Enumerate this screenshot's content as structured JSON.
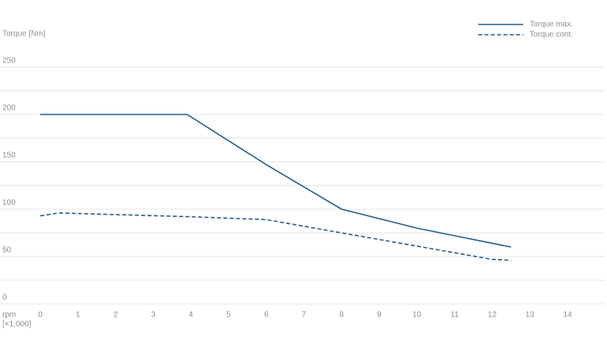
{
  "chart_data": {
    "type": "line",
    "ylabel": "Torque [Nm]",
    "xlabel": "rpm",
    "xunit": "[×1,000]",
    "xlim": [
      0,
      14
    ],
    "xticks": [
      0,
      1,
      2,
      3,
      4,
      5,
      6,
      7,
      8,
      9,
      10,
      11,
      12,
      13,
      14
    ],
    "ylim": [
      0,
      250
    ],
    "yticks": [
      0,
      50,
      100,
      150,
      200,
      250
    ],
    "minor_yticks": [
      25,
      75,
      125,
      175,
      225
    ],
    "grid": true,
    "legend": "upper right",
    "series": [
      {
        "name": "Torque max.",
        "color": "#245d8c",
        "style": "solid",
        "x": [
          0,
          3.9,
          6,
          8,
          10,
          11,
          12.5
        ],
        "values": [
          200,
          200,
          147,
          100,
          80,
          72,
          60
        ]
      },
      {
        "name": "Torque cont.",
        "color": "#245d8c",
        "style": "dashed",
        "x": [
          0,
          0.5,
          4,
          6,
          8,
          10,
          12,
          12.5
        ],
        "values": [
          93,
          96,
          92,
          89,
          75,
          61,
          47,
          46
        ]
      }
    ]
  }
}
